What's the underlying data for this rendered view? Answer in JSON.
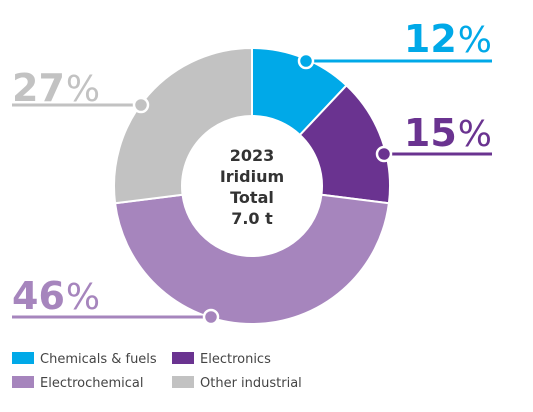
{
  "chart_data": {
    "type": "pie",
    "variant": "donut",
    "center_text": [
      "2023",
      "Iridium",
      "Total",
      "7.0 t"
    ],
    "percent_symbol": "%",
    "slices": [
      {
        "name": "Chemicals & fuels",
        "value": 12,
        "label": "12",
        "color": "#00a9e8"
      },
      {
        "name": "Electronics",
        "value": 15,
        "label": "15",
        "color": "#6a3390"
      },
      {
        "name": "Electrochemical",
        "value": 46,
        "label": "46",
        "color": "#a685bd"
      },
      {
        "name": "Other industrial",
        "value": 27,
        "label": "27",
        "color": "#c2c2c2"
      }
    ],
    "legend": {
      "placement": "bottom-left",
      "columns": 2
    }
  }
}
